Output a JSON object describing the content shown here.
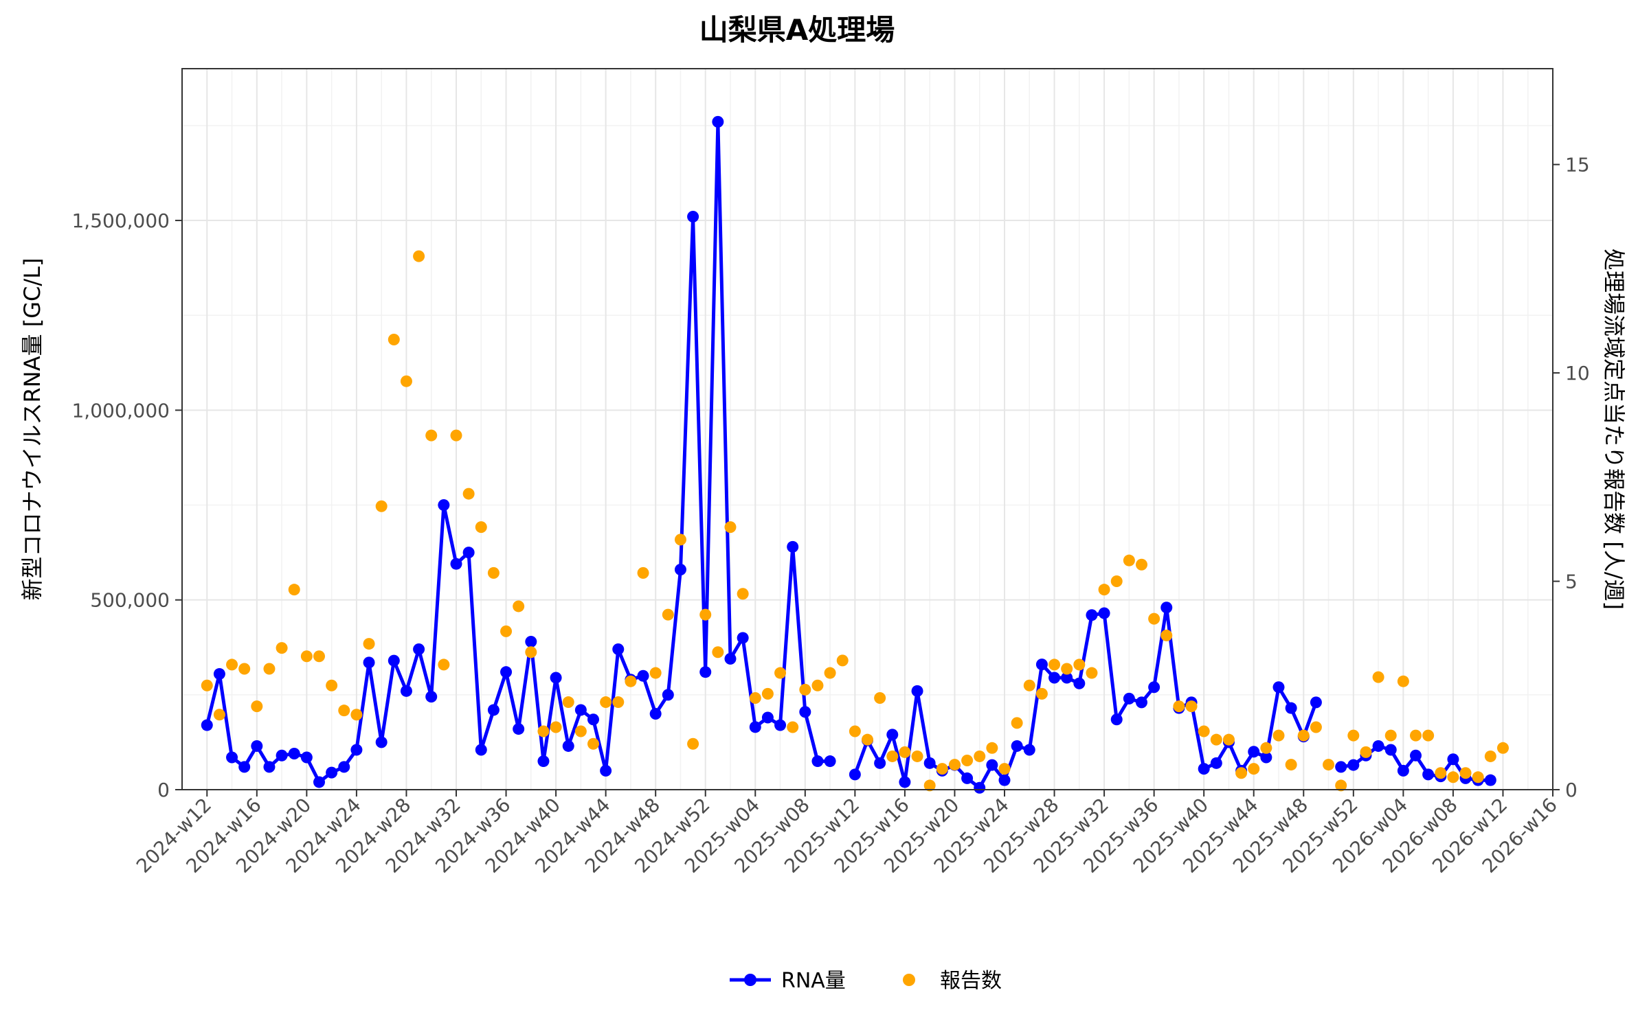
{
  "chart_data": {
    "type": "line+scatter",
    "title": "山梨県A処理場",
    "ylabel_left": "新型コロナウイルスRNA量 [GC/L]",
    "ylabel_right": "処理場流域定点当たり報告数 [人/週]",
    "xlabel": "",
    "ylim_left": [
      0,
      1900000
    ],
    "ylim_right": [
      0,
      17.3
    ],
    "yticks_left": [
      0,
      500000,
      1000000,
      1500000
    ],
    "yticks_left_labels": [
      "0",
      "500,000",
      "1,000,000",
      "1,500,000"
    ],
    "yticks_right": [
      0,
      5,
      10,
      15
    ],
    "yticks_right_labels": [
      "0",
      "5",
      "10",
      "15"
    ],
    "x_ticks": [
      "2024-w12",
      "2024-w16",
      "2024-w20",
      "2024-w24",
      "2024-w28",
      "2024-w32",
      "2024-w36",
      "2024-w40",
      "2024-w44",
      "2024-w48",
      "2024-w52",
      "2025-w04",
      "2025-w08",
      "2025-w12",
      "2025-w16",
      "2025-w20",
      "2025-w24",
      "2025-w28",
      "2025-w32",
      "2025-w36",
      "2025-w40",
      "2025-w44",
      "2025-w48",
      "2025-w52",
      "2026-w04",
      "2026-w08",
      "2026-w12",
      "2026-w16"
    ],
    "x_index_range": [
      -2,
      108
    ],
    "legend": [
      {
        "name": "RNA量",
        "color": "#0000ff",
        "marker": "line+point"
      },
      {
        "name": "報告数",
        "color": "#ffa500",
        "marker": "point"
      }
    ],
    "series": [
      {
        "name": "RNA量",
        "axis": "left",
        "color": "#0000ff",
        "values": [
          170000,
          305000,
          85000,
          60000,
          115000,
          60000,
          90000,
          95000,
          85000,
          20000,
          45000,
          60000,
          105000,
          335000,
          125000,
          340000,
          260000,
          370000,
          245000,
          750000,
          595000,
          625000,
          105000,
          210000,
          310000,
          160000,
          390000,
          75000,
          295000,
          115000,
          210000,
          185000,
          50000,
          370000,
          290000,
          300000,
          200000,
          250000,
          580000,
          1510000,
          310000,
          1760000,
          345000,
          400000,
          165000,
          190000,
          170000,
          640000,
          205000,
          75000,
          75000,
          null,
          40000,
          130000,
          70000,
          145000,
          20000,
          260000,
          70000,
          50000,
          65000,
          30000,
          5000,
          65000,
          25000,
          115000,
          105000,
          330000,
          295000,
          295000,
          280000,
          460000,
          465000,
          185000,
          240000,
          230000,
          270000,
          480000,
          215000,
          230000,
          55000,
          70000,
          125000,
          50000,
          100000,
          85000,
          270000,
          215000,
          140000,
          230000,
          null,
          60000,
          65000,
          90000,
          115000,
          105000,
          50000,
          90000,
          40000,
          35000,
          80000,
          30000,
          25000,
          25000
        ]
      },
      {
        "name": "報告数",
        "axis": "right",
        "color": "#ffa500",
        "values": [
          2.5,
          1.8,
          3.0,
          2.9,
          2.0,
          2.9,
          3.4,
          4.8,
          3.2,
          3.2,
          2.5,
          1.9,
          1.8,
          3.5,
          6.8,
          10.8,
          9.8,
          12.8,
          8.5,
          3.0,
          8.5,
          7.1,
          6.3,
          5.2,
          3.8,
          4.4,
          3.3,
          1.4,
          1.5,
          2.1,
          1.4,
          1.1,
          2.1,
          2.1,
          2.6,
          5.2,
          2.8,
          4.2,
          6.0,
          1.1,
          4.2,
          3.3,
          6.3,
          4.7,
          2.2,
          2.3,
          2.8,
          1.5,
          2.4,
          2.5,
          2.8,
          3.1,
          1.4,
          1.2,
          2.2,
          0.8,
          0.9,
          0.8,
          0.1,
          0.5,
          0.6,
          0.7,
          0.8,
          1.0,
          0.5,
          1.6,
          2.5,
          2.3,
          3.0,
          2.9,
          3.0,
          2.8,
          4.8,
          5.0,
          5.5,
          5.4,
          4.1,
          3.7,
          2.0,
          2.0,
          1.4,
          1.2,
          1.2,
          0.4,
          0.5,
          1.0,
          1.3,
          0.6,
          1.3,
          1.5,
          0.6,
          0.1,
          1.3,
          0.9,
          2.7,
          1.3,
          2.6,
          1.3,
          1.3,
          0.4,
          0.3,
          0.4,
          0.3,
          0.8,
          1.0
        ]
      }
    ]
  }
}
